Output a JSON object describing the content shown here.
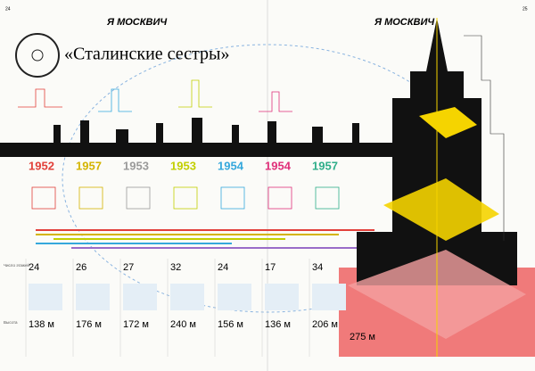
{
  "header": {
    "left_page_number": "24",
    "left_rubric": "Я МОСКВИЧ",
    "right_rubric": "Я МОСКВИЧ",
    "right_page_number": "25"
  },
  "title": "«Сталинские сестры»",
  "row_labels": {
    "floors": "Число этажей",
    "height": "Высота"
  },
  "columns": [
    {
      "year": "1952",
      "color": "#e2403a",
      "floors": "24",
      "height": "138 м"
    },
    {
      "year": "1957",
      "color": "#d4b400",
      "floors": "26",
      "height": "176 м"
    },
    {
      "year": "1953",
      "color": "#9a9a9a",
      "floors": "27",
      "height": "172 м"
    },
    {
      "year": "1953",
      "color": "#c2cf00",
      "floors": "32",
      "height": "240 м"
    },
    {
      "year": "1954",
      "color": "#35a8dc",
      "floors": "24",
      "height": "156 м"
    },
    {
      "year": "1954",
      "color": "#e0307a",
      "floors": "17",
      "height": "136 м"
    },
    {
      "year": "1957",
      "color": "#2fae8a",
      "floors": "34",
      "height": "206 м"
    }
  ],
  "main_building_height": "275 м"
}
